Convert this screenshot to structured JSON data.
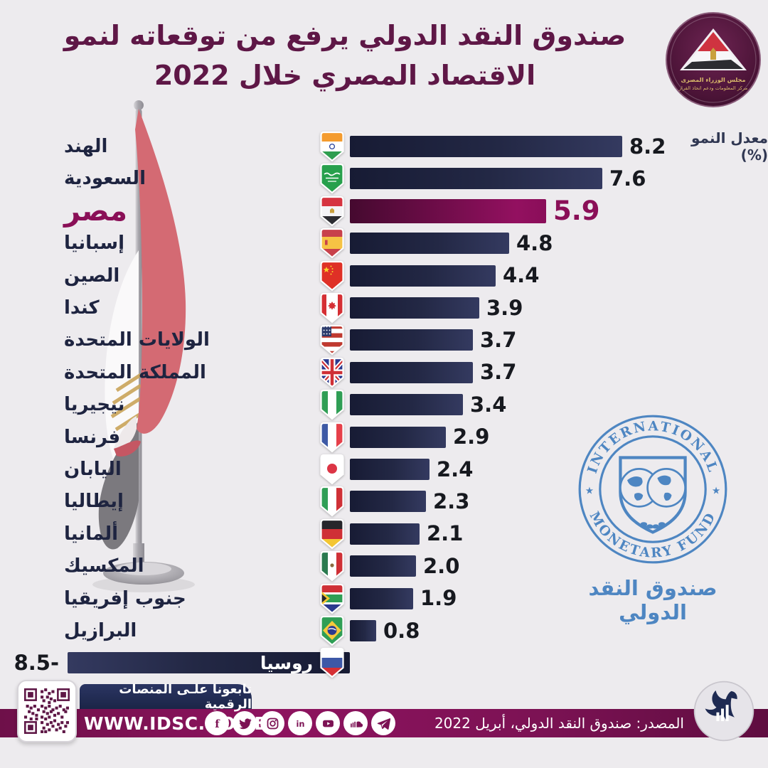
{
  "header": {
    "title_line1": "صندوق النقد الدولي يرفع من توقعاته لنمو",
    "title_line2": "الاقتصاد المصري خلال 2022"
  },
  "cabinet_logo": {
    "line1": "مجلس الوزراء المصرى",
    "line2": "مركز المعلومات ودعم اتخاذ القرار"
  },
  "chart_data": {
    "type": "bar",
    "orientation": "horizontal",
    "axis_label": "معدل النمو (%)",
    "xlim": [
      -8.5,
      8.2
    ],
    "categories": [
      "الهند",
      "السعودية",
      "مصر",
      "إسبانيا",
      "الصين",
      "كندا",
      "الولايات المتحدة",
      "المملكة المتحدة",
      "نيجيريا",
      "فرنسا",
      "اليابان",
      "إيطاليا",
      "ألمانيا",
      "المكسيك",
      "جنوب إفريقيا",
      "البرازيل",
      "روسيا"
    ],
    "values": [
      8.2,
      7.6,
      5.9,
      4.8,
      4.4,
      3.9,
      3.7,
      3.7,
      3.4,
      2.9,
      2.4,
      2.3,
      2.1,
      2.0,
      1.9,
      0.8,
      -8.5
    ],
    "value_labels": [
      "8.2",
      "7.6",
      "5.9",
      "4.8",
      "4.4",
      "3.9",
      "3.7",
      "3.7",
      "3.4",
      "2.9",
      "2.4",
      "2.3",
      "2.1",
      "2.0",
      "1.9",
      "0.8",
      "8.5-"
    ],
    "flags": [
      "india",
      "saudi-arabia",
      "egypt",
      "spain",
      "china",
      "canada",
      "usa",
      "uk",
      "nigeria",
      "france",
      "japan",
      "italy",
      "germany",
      "mexico",
      "south-africa",
      "brazil",
      "russia"
    ],
    "highlight_index": 2,
    "legend": "none",
    "grid": "off"
  },
  "imf": {
    "ring_top": "INTERNATIONAL",
    "ring_bottom": "MONETARY FUND",
    "caption": "صندوق النقد الدولي"
  },
  "footer": {
    "follow_label": "تابعونا علـى المنصات الرقمية",
    "url": "WWW.IDSC.GOV.EG",
    "social": [
      "facebook",
      "twitter",
      "instagram",
      "linkedin",
      "youtube",
      "soundcloud",
      "telegram"
    ],
    "source": "المصدر: صندوق النقد الدولي، أبريل 2022"
  },
  "colors": {
    "background": "#edebee",
    "title": "#5e1746",
    "bar_dark": "#171b34",
    "bar_light": "#343a60",
    "highlight_dark": "#45092f",
    "highlight_light": "#931060",
    "value_text": "#17191f",
    "label_text": "#1e2440",
    "footer_band": "#7c1254",
    "navy_tab": "#222c55",
    "imf_blue": "#4e86c2"
  }
}
